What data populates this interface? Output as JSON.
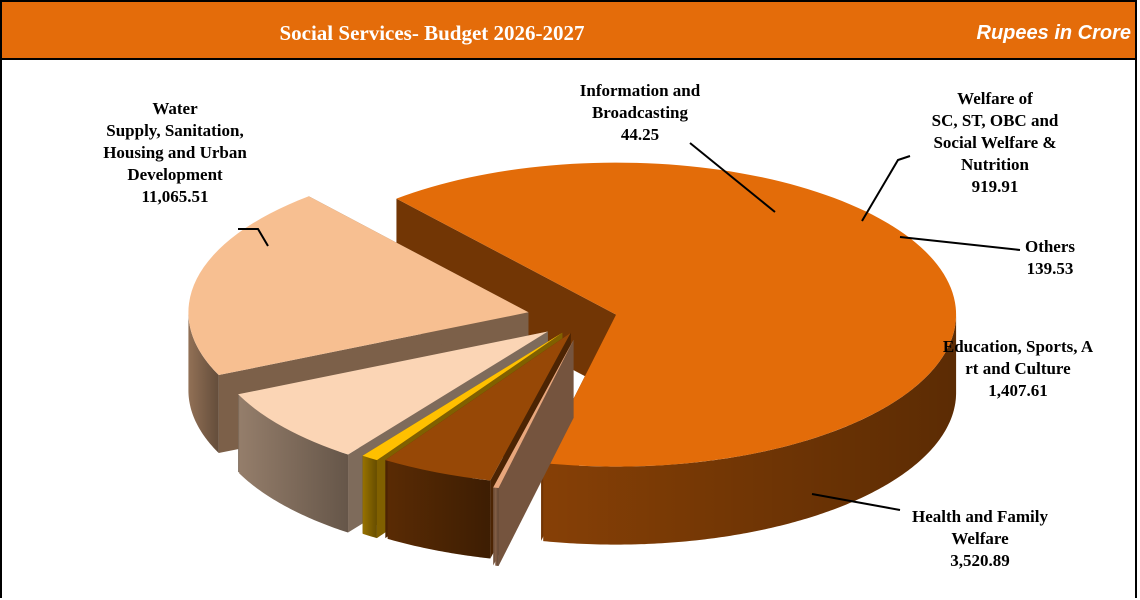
{
  "header": {
    "title": "Social Services- Budget 2026-2027",
    "units": "Rupees in Crore"
  },
  "chart_data": {
    "type": "pie",
    "style": "3D exploded pie",
    "title": "Social Services- Budget 2026-2027",
    "unit_label": "Rupees in Crore",
    "slices": [
      {
        "label": "Water Supply, Sanitation, Housing and Urban Development",
        "display_label": "Water\nSupply, Sanitation,\nHousing and Urban\nDevelopment",
        "value": 11065.51,
        "value_text": "11,065.51",
        "color": "#E36C09"
      },
      {
        "label": "Information and Broadcasting",
        "display_label": "Information and\nBroadcasting",
        "value": 44.25,
        "value_text": "44.25",
        "color": "#E9A77C"
      },
      {
        "label": "Welfare of SC, ST, OBC and Social Welfare & Nutrition",
        "display_label": "Welfare of\nSC, ST, OBC and\nSocial Welfare &\nNutrition",
        "value": 919.91,
        "value_text": "919.91",
        "color": "#974806"
      },
      {
        "label": "Others",
        "display_label": "Others",
        "value": 139.53,
        "value_text": "139.53",
        "color": "#FFC000"
      },
      {
        "label": "Education, Sports, Art and Culture",
        "display_label": "Education, Sports, A\nrt and Culture",
        "value": 1407.61,
        "value_text": "1,407.61",
        "color": "#FBD5B5"
      },
      {
        "label": "Health and Family Welfare",
        "display_label": "Health and Family\nWelfare",
        "value": 3520.89,
        "value_text": "3,520.89",
        "color": "#F7BF91"
      }
    ]
  }
}
